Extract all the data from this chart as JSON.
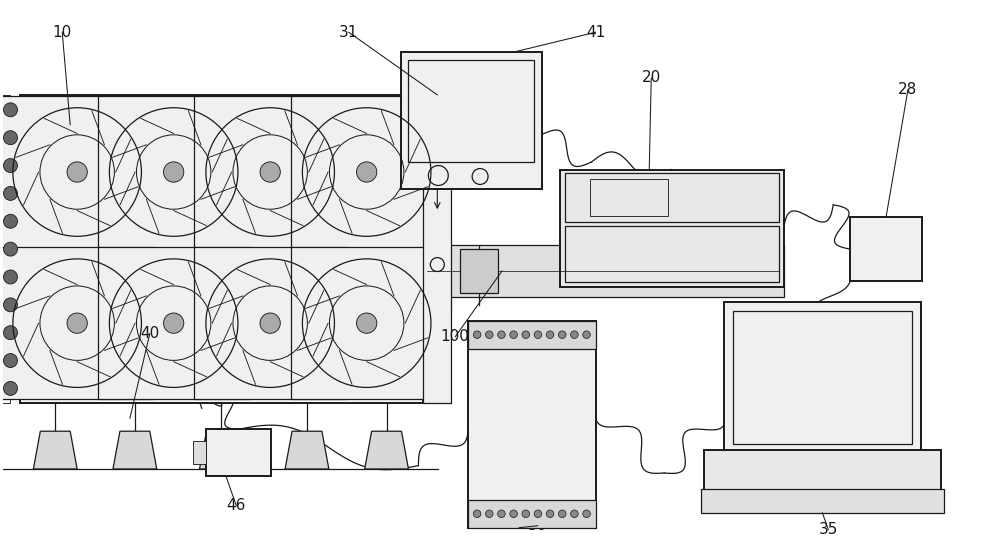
{
  "bg_color": "#ffffff",
  "line_color": "#1a1a1a",
  "label_color": "#1a1a1a",
  "label_fs": 11,
  "lw_main": 0.9,
  "lw_thick": 1.4
}
